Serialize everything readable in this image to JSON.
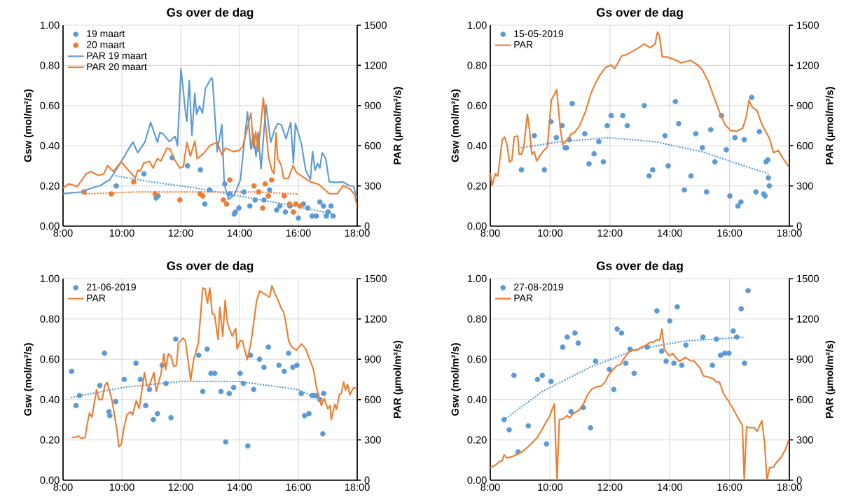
{
  "chart_data": [
    {
      "type": "scatter",
      "title": "Gs over de dag",
      "ylabel": "Gsw (mol/m²/s)",
      "y2label": "PAR (µmol/m²/s)",
      "xlim": [
        8,
        18
      ],
      "xticks": [
        {
          "value": 8,
          "label": "8:00"
        },
        {
          "value": 10,
          "label": "10:00"
        },
        {
          "value": 12,
          "label": "12:00"
        },
        {
          "value": 14,
          "label": "14:00"
        },
        {
          "value": 16,
          "label": "16:00"
        },
        {
          "value": 18,
          "label": "18:00"
        }
      ],
      "ylim": [
        0,
        1
      ],
      "yticks": [
        {
          "value": 0,
          "label": "0.00"
        },
        {
          "value": 0.2,
          "label": "0.20"
        },
        {
          "value": 0.4,
          "label": "0.40"
        },
        {
          "value": 0.6,
          "label": "0.60"
        },
        {
          "value": 0.8,
          "label": "0.80"
        },
        {
          "value": 1,
          "label": "1.00"
        }
      ],
      "y2lim": [
        0,
        1500
      ],
      "y2ticks": [
        0,
        300,
        600,
        900,
        1200,
        1500
      ],
      "grid": true,
      "legend": "top left",
      "series": [
        {
          "name": "19 maart",
          "type": "scatter",
          "marker": "circle",
          "color": "#5b9bd5",
          "x": [
            9.81,
            10.75,
            11.16,
            11.23,
            11.71,
            12.23,
            12.67,
            12.82,
            12.98,
            13.5,
            13.67,
            13.82,
            13.86,
            13.98,
            14.15,
            14.35,
            14.53,
            14.83,
            15.02,
            15.26,
            15.37,
            15.56,
            15.71,
            16.0,
            16.17,
            16.32,
            16.47,
            16.61,
            16.73,
            16.85,
            16.95,
            17.01,
            17.11,
            17.18
          ],
          "values": [
            0.2,
            0.26,
            0.14,
            0.15,
            0.34,
            0.3,
            0.28,
            0.11,
            0.18,
            0.21,
            0.16,
            0.06,
            0.07,
            0.09,
            0.17,
            0.1,
            0.13,
            0.13,
            0.18,
            0.08,
            0.1,
            0.07,
            0.1,
            0.04,
            0.11,
            0.09,
            0.05,
            0.05,
            0.12,
            0.1,
            0.05,
            0.07,
            0.1,
            0.05
          ]
        },
        {
          "name": "20 maart",
          "type": "scatter",
          "marker": "circle",
          "color": "#ed7d31",
          "x": [
            8.71,
            9.64,
            10.4,
            11.13,
            11.97,
            12.66,
            12.75,
            13.45,
            13.56,
            13.67,
            14.49,
            14.65,
            14.79,
            14.87,
            14.98,
            15.09,
            15.52,
            15.7,
            15.83,
            15.91,
            16.06
          ],
          "values": [
            0.17,
            0.16,
            0.22,
            0.16,
            0.13,
            0.16,
            0.15,
            0.13,
            0.11,
            0.23,
            0.2,
            0.17,
            0.09,
            0.21,
            0.15,
            0.23,
            0.15,
            0.11,
            0.07,
            0.11,
            0.1
          ]
        },
        {
          "name": "PAR 19 maart",
          "type": "line",
          "axis": "y2",
          "line_style": "solid",
          "color": "#5b9bd5",
          "x": [
            8.0,
            8.63,
            8.87,
            9.27,
            9.59,
            9.9,
            10.22,
            10.38,
            10.54,
            10.78,
            10.98,
            11.21,
            11.29,
            11.41,
            11.61,
            11.81,
            11.89,
            12.01,
            12.17,
            12.21,
            12.29,
            12.38,
            12.48,
            12.54,
            12.64,
            12.74,
            12.84,
            13.04,
            13.08,
            13.24,
            13.4,
            13.48,
            13.63,
            13.83,
            14.03,
            14.27,
            14.39,
            14.47,
            14.56,
            14.63,
            14.73,
            14.9,
            15.06,
            15.18,
            15.3,
            15.42,
            15.58,
            15.74,
            15.83,
            15.9,
            16.1,
            16.25,
            16.41,
            16.48,
            16.57,
            16.65,
            16.73,
            16.81,
            16.93,
            17.05,
            17.29,
            17.52,
            17.72,
            17.88,
            18.0
          ],
          "values": [
            242,
            255,
            277,
            303,
            347,
            452,
            574,
            626,
            548,
            626,
            774,
            626,
            699,
            687,
            630,
            670,
            600,
            1175,
            835,
            783,
            1088,
            678,
            992,
            835,
            896,
            843,
            1027,
            1106,
            1097,
            556,
            757,
            312,
            199,
            234,
            347,
            853,
            574,
            687,
            521,
            699,
            426,
            905,
            626,
            713,
            766,
            757,
            652,
            774,
            469,
            766,
            617,
            417,
            347,
            556,
            417,
            469,
            434,
            548,
            504,
            330,
            326,
            330,
            303,
            295,
            207
          ]
        },
        {
          "name": "PAR 20 maart",
          "type": "line",
          "axis": "y2",
          "line_style": "solid",
          "color": "#ed7d31",
          "x": [
            8.0,
            8.2,
            8.48,
            8.79,
            8.95,
            9.19,
            9.39,
            9.51,
            9.71,
            9.98,
            10.22,
            10.46,
            10.54,
            10.62,
            10.74,
            10.94,
            11.06,
            11.21,
            11.33,
            11.53,
            11.65,
            11.77,
            11.97,
            12.09,
            12.21,
            12.33,
            12.48,
            12.56,
            12.76,
            13.0,
            13.24,
            13.4,
            13.52,
            13.79,
            13.99,
            14.11,
            14.39,
            14.47,
            14.55,
            14.63,
            14.81,
            14.98,
            15.1,
            15.17,
            15.24,
            15.3,
            15.42,
            15.5,
            15.66,
            15.82,
            15.94,
            16.17,
            16.41,
            16.69,
            17.05,
            17.33,
            17.52,
            17.76,
            17.92,
            18.0
          ],
          "values": [
            286,
            316,
            295,
            391,
            408,
            378,
            391,
            452,
            408,
            481,
            417,
            361,
            417,
            408,
            469,
            483,
            434,
            504,
            487,
            582,
            574,
            504,
            434,
            443,
            626,
            521,
            635,
            504,
            539,
            603,
            626,
            530,
            582,
            556,
            565,
            595,
            844,
            582,
            705,
            556,
            957,
            521,
            417,
            391,
            696,
            504,
            452,
            356,
            356,
            452,
            399,
            365,
            330,
            312,
            242,
            242,
            303,
            277,
            234,
            138
          ]
        },
        {
          "type": "line",
          "line_style": "dotted",
          "color": "#5b9bd5",
          "x": [
            9.8,
            11.0,
            12.5,
            14.0,
            15.5,
            17.2
          ],
          "values": [
            0.25,
            0.22,
            0.19,
            0.15,
            0.11,
            0.06
          ]
        },
        {
          "type": "line",
          "line_style": "dotted",
          "color": "#ed7d31",
          "x": [
            8.7,
            10.5,
            12.5,
            14.5,
            16.0
          ],
          "values": [
            0.16,
            0.17,
            0.17,
            0.17,
            0.16
          ]
        }
      ]
    },
    {
      "type": "scatter",
      "title": "Gs over de dag",
      "ylabel": "Gsw (mol/m²/s)",
      "y2label": "PAR (µmol/m²/s)",
      "xlim": [
        8,
        18
      ],
      "xticks": [
        {
          "value": 8,
          "label": "8:00"
        },
        {
          "value": 10,
          "label": "10:00"
        },
        {
          "value": 12,
          "label": "12:00"
        },
        {
          "value": 14,
          "label": "14:00"
        },
        {
          "value": 16,
          "label": "16:00"
        },
        {
          "value": 18,
          "label": "18:00"
        }
      ],
      "ylim": [
        0,
        1
      ],
      "yticks": [
        {
          "value": 0,
          "label": "0.00"
        },
        {
          "value": 0.2,
          "label": "0.20"
        },
        {
          "value": 0.4,
          "label": "0.40"
        },
        {
          "value": 0.6,
          "label": "0.60"
        },
        {
          "value": 0.8,
          "label": "0.80"
        },
        {
          "value": 1,
          "label": "1.00"
        }
      ],
      "y2lim": [
        0,
        1500
      ],
      "y2ticks": [
        0,
        300,
        600,
        900,
        1200,
        1500
      ],
      "grid": true,
      "legend": "top left",
      "series": [
        {
          "name": "15-05-2019",
          "type": "scatter",
          "marker": "circle",
          "color": "#5b9bd5",
          "x": [
            9.04,
            9.47,
            9.81,
            10.03,
            10.21,
            10.4,
            10.5,
            10.55,
            10.64,
            10.74,
            11.16,
            11.3,
            11.47,
            11.63,
            11.78,
            11.91,
            12.04,
            12.43,
            12.58,
            13.15,
            13.31,
            13.43,
            13.84,
            13.95,
            14.19,
            14.3,
            14.49,
            14.71,
            14.87,
            15.09,
            15.23,
            15.37,
            15.51,
            15.73,
            15.89,
            16.01,
            16.18,
            16.28,
            16.38,
            16.49,
            16.74,
            16.88,
            17.0,
            17.14,
            17.19,
            17.22,
            17.28,
            17.3,
            17.33
          ],
          "values": [
            0.28,
            0.45,
            0.28,
            0.52,
            0.44,
            0.5,
            0.39,
            0.39,
            0.43,
            0.61,
            0.46,
            0.31,
            0.36,
            0.42,
            0.32,
            0.5,
            0.55,
            0.55,
            0.5,
            0.6,
            0.25,
            0.28,
            0.45,
            0.3,
            0.62,
            0.51,
            0.18,
            0.25,
            0.46,
            0.39,
            0.17,
            0.48,
            0.32,
            0.55,
            0.38,
            0.15,
            0.44,
            0.1,
            0.12,
            0.43,
            0.64,
            0.17,
            0.47,
            0.16,
            0.15,
            0.32,
            0.33,
            0.24,
            0.2
          ]
        },
        {
          "name": "PAR",
          "type": "line",
          "axis": "y2",
          "line_style": "solid",
          "color": "#ed7d31",
          "x": [
            8.0,
            8.06,
            8.17,
            8.25,
            8.4,
            8.48,
            8.56,
            8.64,
            8.72,
            8.8,
            8.92,
            8.96,
            9.04,
            9.12,
            9.24,
            9.31,
            9.39,
            9.47,
            9.55,
            9.67,
            9.79,
            9.91,
            10.04,
            10.22,
            10.34,
            10.42,
            10.58,
            10.7,
            10.82,
            10.98,
            11.18,
            11.37,
            11.49,
            11.65,
            11.85,
            12.05,
            12.16,
            12.4,
            12.56,
            12.76,
            12.96,
            13.15,
            13.35,
            13.51,
            13.59,
            13.65,
            13.75,
            13.91,
            14.22,
            14.38,
            14.7,
            14.94,
            15.09,
            15.29,
            15.49,
            15.69,
            15.85,
            16.04,
            16.24,
            16.44,
            16.56,
            16.65,
            16.76,
            16.92,
            17.07,
            17.23,
            17.34,
            17.47,
            17.63,
            17.79,
            17.98
          ],
          "values": [
            399,
            303,
            391,
            373,
            644,
            666,
            609,
            478,
            490,
            666,
            673,
            539,
            535,
            591,
            835,
            722,
            535,
            556,
            487,
            530,
            565,
            591,
            940,
            1018,
            731,
            609,
            644,
            687,
            699,
            748,
            853,
            992,
            1053,
            1123,
            1184,
            1202,
            1175,
            1271,
            1280,
            1306,
            1332,
            1359,
            1332,
            1359,
            1449,
            1428,
            1263,
            1263,
            1237,
            1219,
            1237,
            1202,
            1167,
            1080,
            957,
            835,
            757,
            713,
            708,
            731,
            818,
            940,
            888,
            862,
            766,
            696,
            652,
            548,
            565,
            504,
            443
          ]
        },
        {
          "type": "line",
          "line_style": "dotted",
          "color": "#5b9bd5",
          "x": [
            9.04,
            10.34,
            11.93,
            13.51,
            15.09,
            16.28,
            17.31
          ],
          "values": [
            0.39,
            0.42,
            0.44,
            0.42,
            0.37,
            0.31,
            0.26
          ]
        }
      ]
    },
    {
      "type": "scatter",
      "title": "Gs over de dag",
      "ylabel": "Gsw (mol/m²/s)",
      "y2label": "PAR (µmol/m²/s)",
      "xlim": [
        8,
        18
      ],
      "xticks": [
        {
          "value": 8,
          "label": "8:00"
        },
        {
          "value": 10,
          "label": "10:00"
        },
        {
          "value": 12,
          "label": "12:00"
        },
        {
          "value": 14,
          "label": "14:00"
        },
        {
          "value": 16,
          "label": "16:00"
        },
        {
          "value": 18,
          "label": "18:00"
        }
      ],
      "ylim": [
        0,
        1
      ],
      "yticks": [
        {
          "value": 0,
          "label": "0.00"
        },
        {
          "value": 0.2,
          "label": "0.20"
        },
        {
          "value": 0.4,
          "label": "0.40"
        },
        {
          "value": 0.6,
          "label": "0.60"
        },
        {
          "value": 0.8,
          "label": "0.80"
        },
        {
          "value": 1,
          "label": "1.00"
        }
      ],
      "y2lim": [
        0,
        1500
      ],
      "y2ticks": [
        0,
        300,
        600,
        900,
        1200,
        1500
      ],
      "grid": true,
      "legend": "top left",
      "series": [
        {
          "name": "21-06-2019",
          "type": "scatter",
          "marker": "circle",
          "color": "#5b9bd5",
          "x": [
            8.29,
            8.44,
            8.56,
            9.25,
            9.41,
            9.56,
            9.59,
            9.79,
            10.08,
            10.48,
            10.63,
            10.81,
            10.94,
            11.07,
            11.21,
            11.37,
            11.5,
            11.67,
            11.83,
            12.61,
            12.75,
            12.9,
            13.03,
            13.16,
            13.37,
            13.53,
            13.65,
            13.8,
            14.02,
            14.13,
            14.28,
            14.37,
            14.48,
            14.68,
            14.83,
            14.98,
            15.34,
            15.52,
            15.67,
            15.81,
            15.95,
            16.1,
            16.21,
            16.36,
            16.47,
            16.53,
            16.61,
            16.73,
            16.83,
            16.86
          ],
          "values": [
            0.54,
            0.37,
            0.42,
            0.47,
            0.63,
            0.34,
            0.32,
            0.39,
            0.5,
            0.58,
            0.5,
            0.37,
            0.45,
            0.3,
            0.33,
            0.57,
            0.48,
            0.31,
            0.7,
            0.62,
            0.44,
            0.65,
            0.53,
            0.53,
            0.44,
            0.19,
            0.43,
            0.46,
            0.53,
            0.48,
            0.17,
            0.62,
            0.45,
            0.6,
            0.56,
            0.66,
            0.57,
            0.54,
            0.63,
            0.56,
            0.57,
            0.43,
            0.32,
            0.33,
            0.42,
            0.42,
            0.42,
            0.4,
            0.23,
            0.43
          ]
        },
        {
          "name": "PAR",
          "type": "line",
          "axis": "y2",
          "line_style": "solid",
          "color": "#ed7d31",
          "x": [
            8.29,
            8.43,
            8.51,
            8.63,
            8.75,
            8.83,
            8.9,
            8.98,
            9.14,
            9.22,
            9.33,
            9.42,
            9.5,
            9.66,
            9.82,
            9.9,
            9.98,
            10.08,
            10.17,
            10.29,
            10.36,
            10.49,
            10.59,
            10.77,
            10.85,
            10.93,
            11.09,
            11.17,
            11.33,
            11.43,
            11.49,
            11.58,
            11.67,
            11.76,
            11.86,
            11.92,
            12.08,
            12.16,
            12.34,
            12.44,
            12.52,
            12.6,
            12.67,
            12.75,
            12.83,
            12.91,
            12.99,
            13.07,
            13.15,
            13.27,
            13.33,
            13.43,
            13.51,
            13.59,
            13.75,
            13.87,
            13.92,
            14.02,
            14.1,
            14.26,
            14.37,
            14.42,
            14.58,
            14.68,
            14.86,
            15.02,
            15.1,
            15.21,
            15.32,
            15.41,
            15.49,
            15.57,
            15.67,
            15.77,
            15.93,
            16.11,
            16.25,
            16.37,
            16.51,
            16.62,
            16.72,
            16.78,
            16.88,
            17.0,
            17.08,
            17.12,
            17.24,
            17.3,
            17.4,
            17.46,
            17.54,
            17.6,
            17.67,
            17.75,
            17.87,
            18.0
          ],
          "values": [
            317,
            320,
            329,
            311,
            317,
            425,
            500,
            469,
            675,
            600,
            600,
            705,
            728,
            600,
            390,
            250,
            268,
            399,
            486,
            509,
            486,
            591,
            535,
            801,
            700,
            700,
            801,
            661,
            792,
            941,
            824,
            941,
            923,
            848,
            854,
            1020,
            1058,
            1037,
            743,
            897,
            958,
            1020,
            1212,
            1431,
            1422,
            1317,
            1431,
            1238,
            1233,
            1046,
            1286,
            1072,
            1338,
            1168,
            1072,
            1130,
            976,
            1037,
            1037,
            897,
            1002,
            1072,
            1334,
            1408,
            1384,
            1361,
            1448,
            1387,
            1334,
            1282,
            1256,
            1177,
            1037,
            993,
            967,
            1014,
            976,
            906,
            827,
            687,
            609,
            556,
            609,
            530,
            556,
            451,
            565,
            530,
            638,
            647,
            731,
            670,
            714,
            635,
            687,
            687
          ]
        },
        {
          "type": "line",
          "line_style": "dotted",
          "color": "#5b9bd5",
          "x": [
            8.29,
            10.02,
            12.0,
            13.98,
            15.97,
            16.76
          ],
          "values": [
            0.41,
            0.46,
            0.49,
            0.49,
            0.45,
            0.4
          ]
        }
      ]
    },
    {
      "type": "scatter",
      "title": "Gs over de dag",
      "ylabel": "Gsw (mol/m²/s)",
      "y2label": "PAR (µmol/m²/s)",
      "xlim": [
        8,
        18
      ],
      "xticks": [
        {
          "value": 8,
          "label": "8:00"
        },
        {
          "value": 10,
          "label": "10:00"
        },
        {
          "value": 12,
          "label": "12:00"
        },
        {
          "value": 14,
          "label": "14:00"
        },
        {
          "value": 16,
          "label": "16:00"
        },
        {
          "value": 18,
          "label": "18:00"
        }
      ],
      "ylim": [
        0,
        1
      ],
      "yticks": [
        {
          "value": 0,
          "label": "0.00"
        },
        {
          "value": 0.2,
          "label": "0.20"
        },
        {
          "value": 0.4,
          "label": "0.40"
        },
        {
          "value": 0.6,
          "label": "0.60"
        },
        {
          "value": 0.8,
          "label": "0.80"
        },
        {
          "value": 1,
          "label": "1.00"
        }
      ],
      "y2lim": [
        0,
        1500
      ],
      "y2ticks": [
        0,
        300,
        600,
        900,
        1200,
        1500
      ],
      "grid": true,
      "legend": "top left",
      "series": [
        {
          "name": "27-08-2019",
          "type": "scatter",
          "marker": "circle",
          "color": "#5b9bd5",
          "x": [
            8.46,
            8.63,
            8.79,
            8.93,
            9.27,
            9.58,
            9.74,
            9.88,
            10.03,
            10.42,
            10.57,
            10.7,
            10.83,
            10.94,
            11.11,
            11.35,
            11.52,
            11.98,
            12.13,
            12.24,
            12.39,
            12.53,
            12.67,
            12.81,
            13.25,
            13.57,
            13.73,
            13.88,
            14.0,
            14.14,
            14.25,
            14.4,
            14.54,
            15.11,
            15.43,
            15.56,
            15.7,
            15.84,
            15.98,
            16.12,
            16.24,
            16.39,
            16.5,
            16.62
          ],
          "values": [
            0.3,
            0.25,
            0.52,
            0.14,
            0.27,
            0.5,
            0.52,
            0.18,
            0.49,
            0.66,
            0.71,
            0.34,
            0.73,
            0.68,
            0.36,
            0.26,
            0.59,
            0.55,
            0.45,
            0.75,
            0.73,
            0.58,
            0.65,
            0.53,
            0.66,
            0.84,
            0.64,
            0.59,
            0.79,
            0.58,
            0.86,
            0.57,
            0.67,
            0.71,
            0.57,
            0.7,
            0.62,
            0.63,
            0.63,
            0.74,
            0.71,
            0.85,
            0.58,
            0.94
          ]
        },
        {
          "name": "PAR",
          "type": "line",
          "axis": "y2",
          "line_style": "solid",
          "color": "#ed7d31",
          "x": [
            8.0,
            8.16,
            8.32,
            8.4,
            8.46,
            8.55,
            8.67,
            8.87,
            9.07,
            9.27,
            9.43,
            9.58,
            9.74,
            9.86,
            9.98,
            10.14,
            10.23,
            10.31,
            10.45,
            10.56,
            10.65,
            10.77,
            10.97,
            11.13,
            11.25,
            11.4,
            11.56,
            11.72,
            11.84,
            11.96,
            12.12,
            12.24,
            12.35,
            12.47,
            12.63,
            12.79,
            12.91,
            13.03,
            13.19,
            13.34,
            13.46,
            13.57,
            13.66,
            13.74,
            13.82,
            13.98,
            14.1,
            14.22,
            14.32,
            14.53,
            14.69,
            14.81,
            15.01,
            15.13,
            15.27,
            15.44,
            15.56,
            15.66,
            15.8,
            15.96,
            16.12,
            16.27,
            16.43,
            16.49,
            16.57,
            16.67,
            16.83,
            16.92,
            17.08,
            17.17,
            17.25,
            17.34,
            17.46,
            17.58,
            17.7,
            17.86,
            17.98
          ],
          "values": [
            94,
            110,
            140,
            145,
            189,
            166,
            171,
            189,
            212,
            250,
            285,
            320,
            381,
            429,
            474,
            568,
            0,
            451,
            457,
            481,
            464,
            495,
            521,
            574,
            635,
            679,
            696,
            701,
            731,
            784,
            827,
            854,
            859,
            906,
            953,
            970,
            967,
            988,
            1002,
            1025,
            1028,
            1046,
            1040,
            1125,
            974,
            925,
            944,
            909,
            883,
            914,
            888,
            888,
            836,
            775,
            770,
            757,
            731,
            731,
            644,
            591,
            530,
            469,
            408,
            0,
            399,
            390,
            390,
            364,
            442,
            285,
            0,
            93,
            96,
            136,
            163,
            224,
            300
          ]
        },
        {
          "type": "line",
          "line_style": "dotted",
          "color": "#5b9bd5",
          "x": [
            8.46,
            9.74,
            11.33,
            12.91,
            14.49,
            16.51
          ],
          "values": [
            0.3,
            0.44,
            0.56,
            0.65,
            0.69,
            0.71
          ]
        }
      ]
    }
  ]
}
